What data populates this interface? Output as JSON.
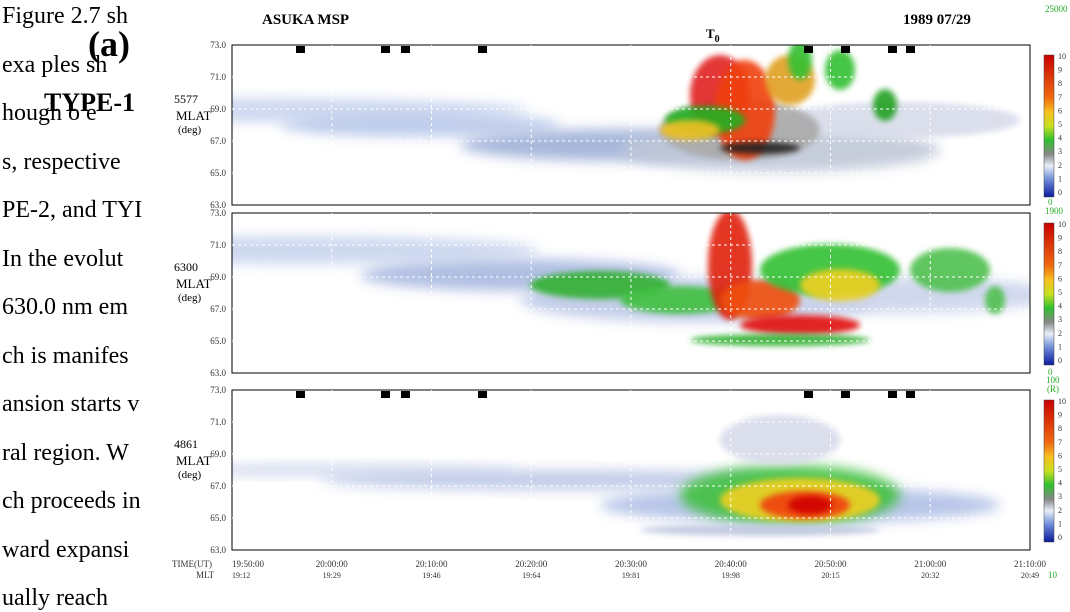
{
  "document": {
    "lines": [
      "Figure 2.7 sh",
      "exa ples sh",
      "hough   o e",
      "s, respective",
      "PE-2, and TYI",
      "In the evolut",
      "630.0 nm em",
      "ch is manifes",
      "ansion starts v",
      "ral region. W",
      "ch proceeds in",
      "ward expansi",
      "ually reach"
    ]
  },
  "overlay": {
    "panel_letter": "(a)",
    "type_label": "TYPE-1"
  },
  "keogram": {
    "station": "ASUKA  MSP",
    "onset_label": "T",
    "onset_subscript": "0",
    "date": "1989 07/29",
    "panels": [
      {
        "wavelength": "5577",
        "ylabel": "MLAT",
        "yunit": "(deg)",
        "scale_max": "25000",
        "scale_min": "0"
      },
      {
        "wavelength": "6300",
        "ylabel": "MLAT",
        "yunit": "(deg)",
        "scale_max": "1900",
        "scale_min": "0"
      },
      {
        "wavelength": "4861",
        "ylabel": "MLAT",
        "yunit": "(deg)",
        "scale_max": "100",
        "scale_unit": "(R)",
        "scale_min": "10"
      }
    ],
    "yticks": [
      "73.0",
      "71.0",
      "69.0",
      "67.0",
      "65.0",
      "63.0"
    ],
    "colorbar_ticks": [
      "10",
      "9",
      "8",
      "7",
      "6",
      "5",
      "4",
      "3",
      "2",
      "1",
      "0"
    ],
    "time_label": "TIME(UT)",
    "mlt_label": "MLT",
    "times": [
      "19:50:00",
      "20:00:00",
      "20:10:00",
      "20:20:00",
      "20:30:00",
      "20:40:00",
      "20:50:00",
      "21:00:00",
      "21:10:00"
    ],
    "mlt": [
      "19:12",
      "19:29",
      "19:46",
      "19:64",
      "19:81",
      "19:98",
      "20:15",
      "20:32",
      "20:49"
    ]
  }
}
